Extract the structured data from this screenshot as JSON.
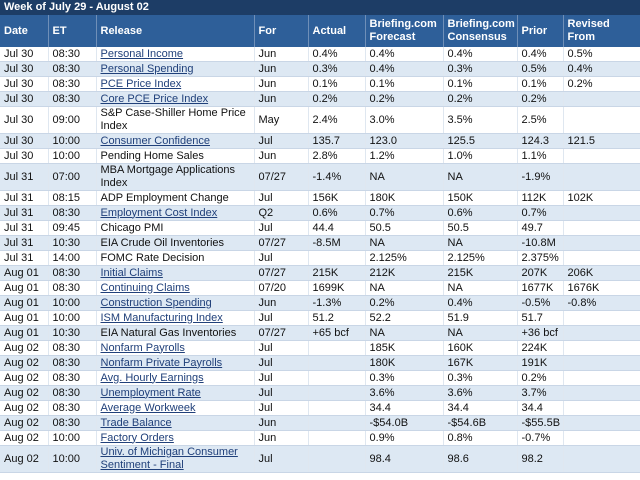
{
  "title": "Week of July 29 - August 02",
  "table": {
    "headers": [
      "Date",
      "ET",
      "Release",
      "For",
      "Actual",
      "Briefing.com Forecast",
      "Briefing.com Consensus",
      "Prior",
      "Revised From"
    ],
    "rows": [
      {
        "cells": [
          "Jul 30",
          "08:30",
          "Personal Income",
          "Jun",
          "0.4%",
          "0.4%",
          "0.4%",
          "0.4%",
          "0.5%"
        ],
        "link": true
      },
      {
        "cells": [
          "Jul 30",
          "08:30",
          "Personal Spending",
          "Jun",
          "0.3%",
          "0.4%",
          "0.3%",
          "0.5%",
          "0.4%"
        ],
        "link": true
      },
      {
        "cells": [
          "Jul 30",
          "08:30",
          "PCE Price Index",
          "Jun",
          "0.1%",
          "0.1%",
          "0.1%",
          "0.1%",
          "0.2%"
        ],
        "link": true
      },
      {
        "cells": [
          "Jul 30",
          "08:30",
          "Core PCE Price Index",
          "Jun",
          "0.2%",
          "0.2%",
          "0.2%",
          "0.2%",
          null
        ],
        "link": true
      },
      {
        "cells": [
          "Jul 30",
          "09:00",
          "S&P Case-Shiller Home Price Index",
          "May",
          "2.4%",
          "3.0%",
          "3.5%",
          "2.5%",
          null
        ],
        "link": false
      },
      {
        "cells": [
          "Jul 30",
          "10:00",
          "Consumer Confidence",
          "Jul",
          "135.7",
          "123.0",
          "125.5",
          "124.3",
          "121.5"
        ],
        "link": true
      },
      {
        "cells": [
          "Jul 30",
          "10:00",
          "Pending Home Sales",
          "Jun",
          "2.8%",
          "1.2%",
          "1.0%",
          "1.1%",
          null
        ],
        "link": false
      },
      {
        "cells": [
          "Jul 31",
          "07:00",
          "MBA Mortgage Applications Index",
          "07/27",
          "-1.4%",
          "NA",
          "NA",
          "-1.9%",
          null
        ],
        "link": false
      },
      {
        "cells": [
          "Jul 31",
          "08:15",
          "ADP Employment Change",
          "Jul",
          "156K",
          "180K",
          "150K",
          "112K",
          "102K"
        ],
        "link": false
      },
      {
        "cells": [
          "Jul 31",
          "08:30",
          "Employment Cost Index",
          "Q2",
          "0.6%",
          "0.7%",
          "0.6%",
          "0.7%",
          null
        ],
        "link": true
      },
      {
        "cells": [
          "Jul 31",
          "09:45",
          "Chicago PMI",
          "Jul",
          "44.4",
          "50.5",
          "50.5",
          "49.7",
          null
        ],
        "link": false
      },
      {
        "cells": [
          "Jul 31",
          "10:30",
          "EIA Crude Oil Inventories",
          "07/27",
          "-8.5M",
          "NA",
          "NA",
          "-10.8M",
          null
        ],
        "link": false
      },
      {
        "cells": [
          "Jul 31",
          "14:00",
          "FOMC Rate Decision",
          "Jul",
          null,
          "2.125%",
          "2.125%",
          "2.375%",
          null
        ],
        "link": false
      },
      {
        "cells": [
          "Aug 01",
          "08:30",
          "Initial Claims",
          "07/27",
          "215K",
          "212K",
          "215K",
          "207K",
          "206K"
        ],
        "link": true
      },
      {
        "cells": [
          "Aug 01",
          "08:30",
          "Continuing Claims",
          "07/20",
          "1699K",
          "NA",
          "NA",
          "1677K",
          "1676K"
        ],
        "link": true
      },
      {
        "cells": [
          "Aug 01",
          "10:00",
          "Construction Spending",
          "Jun",
          "-1.3%",
          "0.2%",
          "0.4%",
          "-0.5%",
          "-0.8%"
        ],
        "link": true
      },
      {
        "cells": [
          "Aug 01",
          "10:00",
          "ISM Manufacturing Index",
          "Jul",
          "51.2",
          "52.2",
          "51.9",
          "51.7",
          null
        ],
        "link": true
      },
      {
        "cells": [
          "Aug 01",
          "10:30",
          "EIA Natural Gas Inventories",
          "07/27",
          "+65 bcf",
          "NA",
          "NA",
          "+36 bcf",
          null
        ],
        "link": false
      },
      {
        "cells": [
          "Aug 02",
          "08:30",
          "Nonfarm Payrolls",
          "Jul",
          null,
          "185K",
          "160K",
          "224K",
          null
        ],
        "link": true
      },
      {
        "cells": [
          "Aug 02",
          "08:30",
          "Nonfarm Private Payrolls",
          "Jul",
          null,
          "180K",
          "167K",
          "191K",
          null
        ],
        "link": true
      },
      {
        "cells": [
          "Aug 02",
          "08:30",
          "Avg. Hourly Earnings",
          "Jul",
          null,
          "0.3%",
          "0.3%",
          "0.2%",
          null
        ],
        "link": true
      },
      {
        "cells": [
          "Aug 02",
          "08:30",
          "Unemployment Rate",
          "Jul",
          null,
          "3.6%",
          "3.6%",
          "3.7%",
          null
        ],
        "link": true
      },
      {
        "cells": [
          "Aug 02",
          "08:30",
          "Average Workweek",
          "Jul",
          null,
          "34.4",
          "34.4",
          "34.4",
          null
        ],
        "link": true
      },
      {
        "cells": [
          "Aug 02",
          "08:30",
          "Trade Balance",
          "Jun",
          null,
          "-$54.0B",
          "-$54.6B",
          "-$55.5B",
          null
        ],
        "link": true
      },
      {
        "cells": [
          "Aug 02",
          "10:00",
          "Factory Orders",
          "Jun",
          null,
          "0.9%",
          "0.8%",
          "-0.7%",
          null
        ],
        "link": true
      },
      {
        "cells": [
          "Aug 02",
          "10:00",
          "Univ. of Michigan Consumer Sentiment - Final",
          "Jul",
          null,
          "98.4",
          "98.6",
          "98.2",
          null
        ],
        "link": true
      }
    ]
  }
}
